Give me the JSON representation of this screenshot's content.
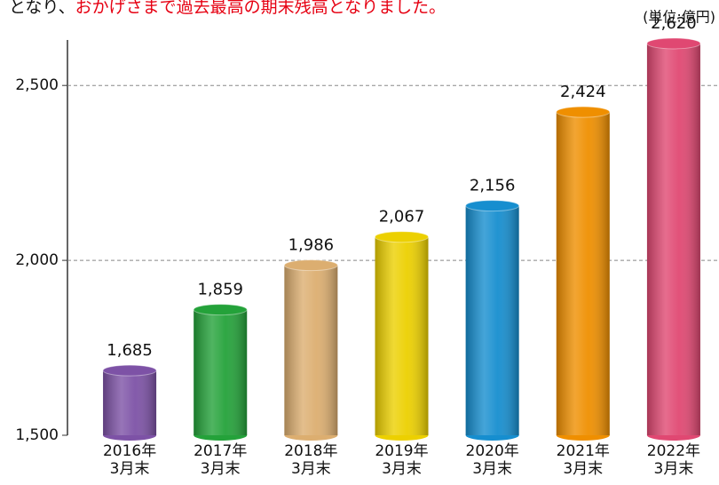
{
  "chart_data": {
    "type": "bar",
    "subtitle": [
      "となり、",
      "おかげさまで過去最高の期末残高となりました。"
    ],
    "unit_label": "(単位:億円)",
    "categories": [
      [
        "2016年",
        "3月末"
      ],
      [
        "2017年",
        "3月末"
      ],
      [
        "2018年",
        "3月末"
      ],
      [
        "2019年",
        "3月末"
      ],
      [
        "2020年",
        "3月末"
      ],
      [
        "2021年",
        "3月末"
      ],
      [
        "2022年",
        "3月末"
      ]
    ],
    "values": [
      1685,
      1859,
      1986,
      2067,
      2156,
      2424,
      2620
    ],
    "value_labels": [
      "1,685",
      "1,859",
      "1,986",
      "2,067",
      "2,156",
      "2,424",
      "2,620"
    ],
    "colors": [
      "#7d52a6",
      "#24a23a",
      "#dcae70",
      "#ecd000",
      "#168ecf",
      "#ef8f00",
      "#e04872"
    ],
    "ylim": [
      1500,
      2630
    ],
    "yticks": [
      {
        "value": 1500,
        "label": "1,500"
      },
      {
        "value": 2000,
        "label": "2,000"
      },
      {
        "value": 2500,
        "label": "2,500"
      }
    ],
    "grid": true
  }
}
